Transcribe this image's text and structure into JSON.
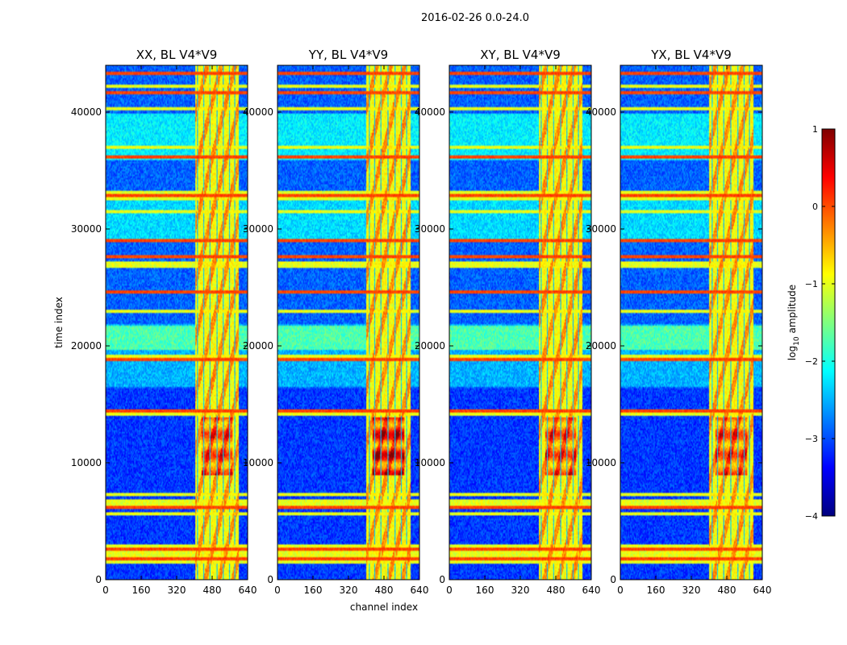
{
  "figure": {
    "suptitle": "2016-02-26 0.0-24.0"
  },
  "colors": {
    "background": "#ffffff",
    "axis": "#000000",
    "jet_stops": [
      "#00007f",
      "#0000ff",
      "#007fff",
      "#00ffff",
      "#7fff7f",
      "#ffff00",
      "#ff7f00",
      "#ff0000",
      "#7f0000"
    ]
  },
  "chart_data": {
    "type": "heatmap",
    "xlabel": "channel index",
    "ylabel": "time index",
    "xlim": [
      0,
      640
    ],
    "ylim": [
      0,
      44000
    ],
    "xticks": [
      0,
      160,
      320,
      480,
      640
    ],
    "xtick_labels": [
      "0",
      "160",
      "320",
      "480",
      "640"
    ],
    "yticks": [
      0,
      10000,
      20000,
      30000,
      40000
    ],
    "ytick_labels": [
      "0",
      "10000",
      "20000",
      "30000",
      "40000"
    ],
    "panels": [
      {
        "title": "XX, BL V4*V9",
        "bright_start": 405,
        "bright_end": 600
      },
      {
        "title": "YY, BL V4*V9",
        "bright_start": 400,
        "bright_end": 600
      },
      {
        "title": "XY, BL V4*V9",
        "bright_start": 405,
        "bright_end": 600
      },
      {
        "title": "YX, BL V4*V9",
        "bright_start": 400,
        "bright_end": 600
      }
    ],
    "colorbar": {
      "label": "log10 amplitude",
      "label_base": "log",
      "label_sub": "10",
      "label_rest": " amplitude",
      "range": [
        -4,
        1
      ],
      "ticks": [
        1,
        0,
        -1,
        -2,
        -3,
        -4
      ],
      "tick_labels": [
        "1",
        "0",
        "−1",
        "−2",
        "−3",
        "−4"
      ]
    }
  }
}
